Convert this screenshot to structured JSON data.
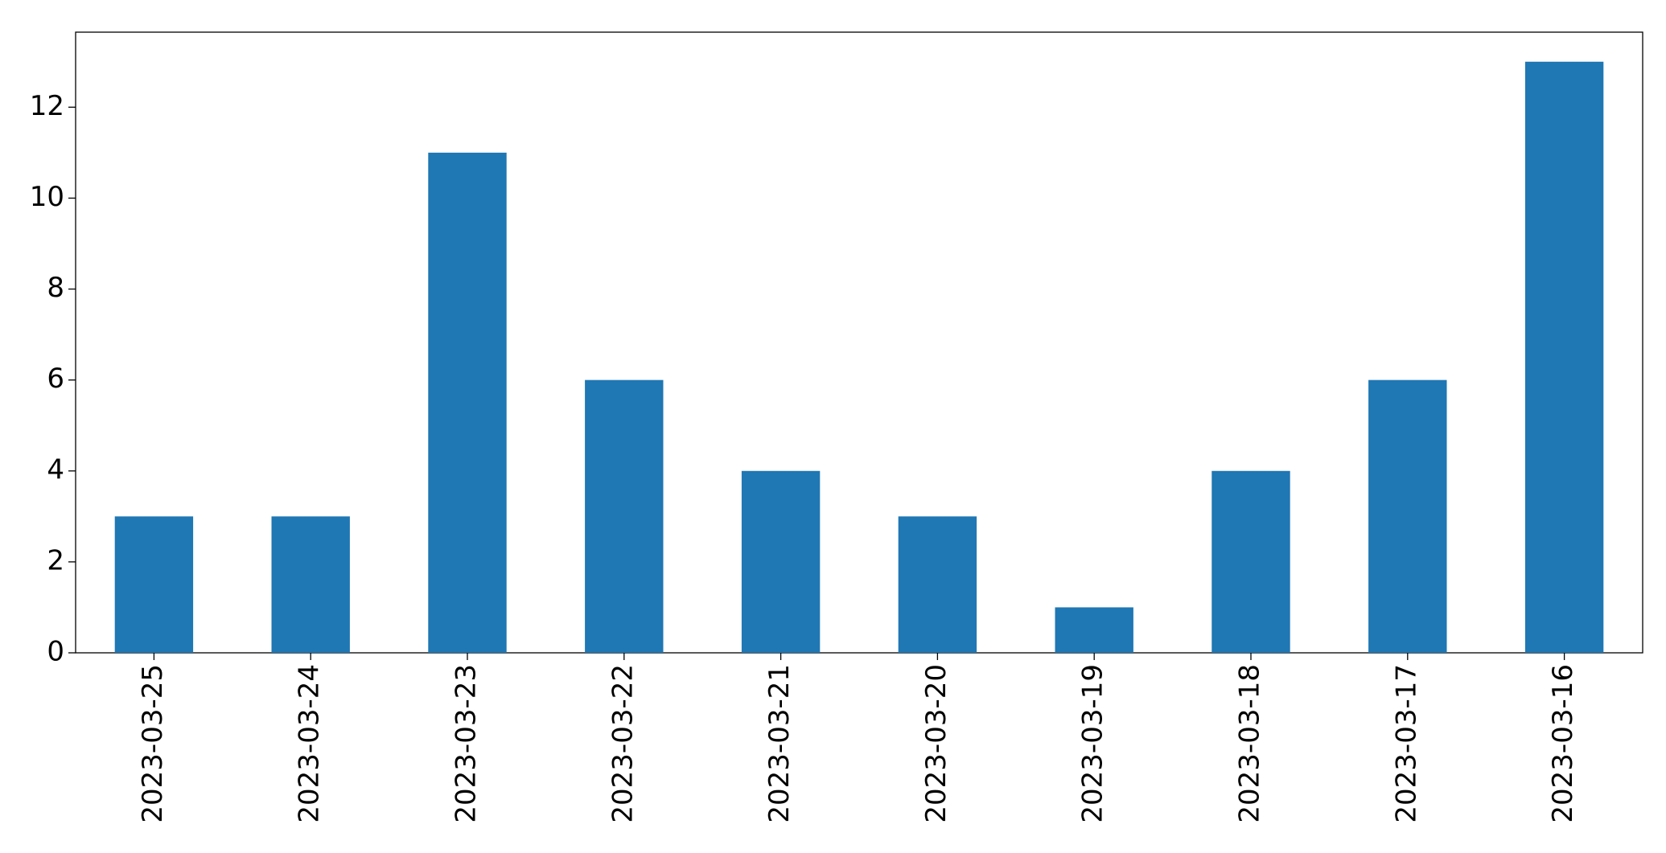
{
  "chart_data": {
    "type": "bar",
    "categories": [
      "2023-03-25",
      "2023-03-24",
      "2023-03-23",
      "2023-03-22",
      "2023-03-21",
      "2023-03-20",
      "2023-03-19",
      "2023-03-18",
      "2023-03-17",
      "2023-03-16"
    ],
    "values": [
      3,
      3,
      11,
      6,
      4,
      3,
      1,
      4,
      6,
      13
    ],
    "color": "#1f77b4",
    "ylim": [
      0,
      13.65
    ],
    "yticks": [
      0,
      2,
      4,
      6,
      8,
      10,
      12
    ],
    "grid": false
  }
}
